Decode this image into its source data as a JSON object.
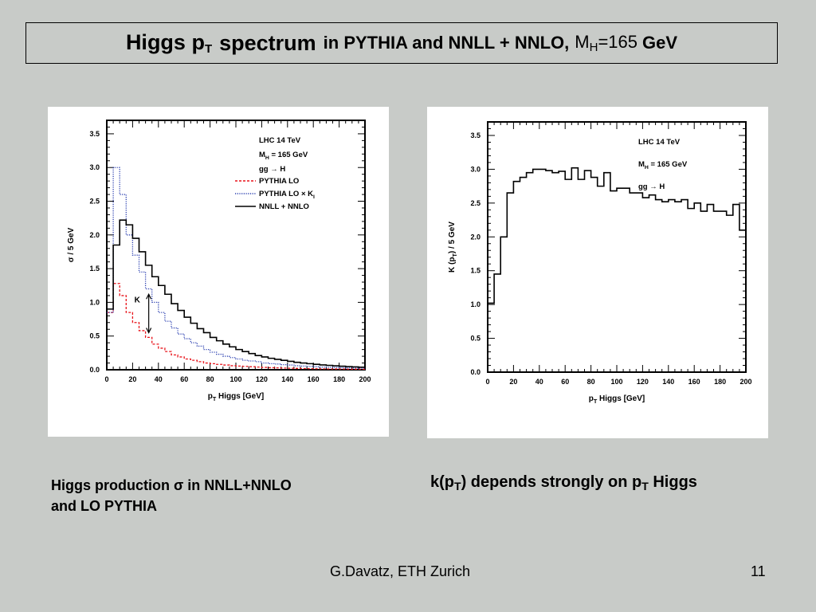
{
  "title": {
    "part1": "Higgs p",
    "part1_sub": "T",
    "part2": "spectrum",
    "part3": "in PYTHIA and NNLL + NNLO,",
    "part4": "M",
    "part4_sub": "H",
    "part5": "=165",
    "part6": "GeV"
  },
  "captions": {
    "left_line1": "Higgs production σ in NNLL+NNLO",
    "left_line2": "and LO PYTHIA",
    "right_a": "k(p",
    "right_sub1": "T",
    "right_b": ") depends strongly on p",
    "right_sub2": "T",
    "right_c": " Higgs"
  },
  "footer": {
    "author": "G.Davatz, ETH Zurich",
    "page": "11"
  },
  "chart_data": [
    {
      "type": "line",
      "step": true,
      "xlabel": "p_T Higgs [GeV]",
      "ylabel": "σ / 5 GeV",
      "xlim": [
        0,
        200
      ],
      "ylim": [
        0,
        3.7
      ],
      "xticks": [
        0,
        20,
        40,
        60,
        80,
        100,
        120,
        140,
        160,
        180,
        200
      ],
      "yticks": [
        "0.0",
        "0.5",
        "1.0",
        "1.5",
        "2.0",
        "2.5",
        "3.0",
        "3.5"
      ],
      "legend_position": "top-right",
      "info_lines": [
        "LHC 14 TeV",
        "M_H = 165 GeV",
        "gg → H"
      ],
      "annotation": "K",
      "x_edges": [
        0,
        5,
        10,
        15,
        20,
        25,
        30,
        35,
        40,
        45,
        50,
        55,
        60,
        65,
        70,
        75,
        80,
        85,
        90,
        95,
        100,
        105,
        110,
        115,
        120,
        125,
        130,
        135,
        140,
        145,
        150,
        155,
        160,
        165,
        170,
        175,
        180,
        185,
        190,
        195,
        200
      ],
      "series": [
        {
          "name": "PYTHIA LO",
          "color": "#e8141b",
          "dash": "3,2",
          "values": [
            0.85,
            1.28,
            1.1,
            0.85,
            0.7,
            0.58,
            0.48,
            0.38,
            0.32,
            0.27,
            0.22,
            0.19,
            0.16,
            0.14,
            0.12,
            0.1,
            0.09,
            0.08,
            0.07,
            0.06,
            0.055,
            0.05,
            0.045,
            0.04,
            0.035,
            0.03,
            0.028,
            0.025,
            0.022,
            0.02,
            0.018,
            0.016,
            0.015,
            0.013,
            0.012,
            0.011,
            0.01,
            0.009,
            0.008,
            0.007
          ]
        },
        {
          "name": "PYTHIA LO × K_I",
          "color": "#2a3fb0",
          "dash": "1.2,1.5",
          "values": [
            0.85,
            3.0,
            2.6,
            2.0,
            1.7,
            1.45,
            1.2,
            1.0,
            0.85,
            0.72,
            0.62,
            0.53,
            0.46,
            0.4,
            0.35,
            0.3,
            0.26,
            0.23,
            0.2,
            0.18,
            0.16,
            0.14,
            0.13,
            0.12,
            0.1,
            0.09,
            0.085,
            0.075,
            0.07,
            0.06,
            0.055,
            0.05,
            0.045,
            0.04,
            0.037,
            0.033,
            0.03,
            0.027,
            0.025,
            0.022
          ]
        },
        {
          "name": "NNLL + NNLO",
          "color": "#000000",
          "dash": "",
          "values": [
            0.9,
            1.85,
            2.22,
            2.15,
            1.95,
            1.75,
            1.55,
            1.38,
            1.25,
            1.12,
            0.98,
            0.88,
            0.78,
            0.69,
            0.61,
            0.55,
            0.48,
            0.43,
            0.38,
            0.34,
            0.3,
            0.27,
            0.24,
            0.21,
            0.19,
            0.17,
            0.155,
            0.14,
            0.125,
            0.11,
            0.1,
            0.09,
            0.08,
            0.072,
            0.065,
            0.058,
            0.052,
            0.047,
            0.042,
            0.038
          ]
        }
      ]
    },
    {
      "type": "line",
      "step": true,
      "xlabel": "p_T Higgs [GeV]",
      "ylabel": "K (p_T) / 5 GeV",
      "xlim": [
        0,
        200
      ],
      "ylim": [
        0,
        3.7
      ],
      "xticks": [
        0,
        20,
        40,
        60,
        80,
        100,
        120,
        140,
        160,
        180,
        200
      ],
      "yticks": [
        "0.0",
        "0.5",
        "1.0",
        "1.5",
        "2.0",
        "2.5",
        "3.0",
        "3.5"
      ],
      "info_lines": [
        "LHC 14 TeV",
        "M_H = 165 GeV",
        "gg → H"
      ],
      "x_edges": [
        0,
        5,
        10,
        15,
        20,
        25,
        30,
        35,
        40,
        45,
        50,
        55,
        60,
        65,
        70,
        75,
        80,
        85,
        90,
        95,
        100,
        105,
        110,
        115,
        120,
        125,
        130,
        135,
        140,
        145,
        150,
        155,
        160,
        165,
        170,
        175,
        180,
        185,
        190,
        195,
        200
      ],
      "series": [
        {
          "name": "",
          "color": "#000000",
          "dash": "",
          "values": [
            1.02,
            1.45,
            2.0,
            2.65,
            2.82,
            2.88,
            2.95,
            3.0,
            3.0,
            2.98,
            2.95,
            2.97,
            2.85,
            3.02,
            2.85,
            2.98,
            2.88,
            2.75,
            2.95,
            2.68,
            2.72,
            2.72,
            2.65,
            2.65,
            2.58,
            2.62,
            2.55,
            2.52,
            2.55,
            2.52,
            2.55,
            2.42,
            2.5,
            2.38,
            2.48,
            2.38,
            2.38,
            2.32,
            2.48,
            2.1
          ]
        }
      ]
    }
  ]
}
